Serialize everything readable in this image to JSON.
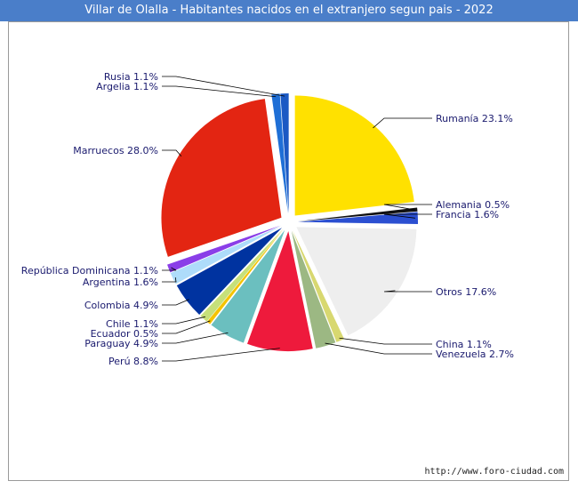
{
  "title": "Villar de Olalla - Habitantes nacidos en el extranjero segun pais - 2022",
  "url": "http://www.foro-ciudad.com",
  "chart_data": {
    "type": "pie",
    "title": "Villar de Olalla - Habitantes nacidos en el extranjero segun pais - 2022",
    "slices": [
      {
        "label": "Rumanía 23.1%",
        "name": "Rumanía",
        "value": 23.1,
        "color": "#ffe100"
      },
      {
        "label": "Alemania 0.5%",
        "name": "Alemania",
        "value": 0.5,
        "color": "#111111"
      },
      {
        "label": "Francia 1.6%",
        "name": "Francia",
        "value": 1.6,
        "color": "#2b4fd1"
      },
      {
        "label": "Otros 17.6%",
        "name": "Otros",
        "value": 17.6,
        "color": "#eeeeee"
      },
      {
        "label": "China 1.1%",
        "name": "China",
        "value": 1.1,
        "color": "#d8d870"
      },
      {
        "label": "Venezuela 2.7%",
        "name": "Venezuela",
        "value": 2.7,
        "color": "#9cb883"
      },
      {
        "label": "Perú 8.8%",
        "name": "Perú",
        "value": 8.8,
        "color": "#ee1a3c"
      },
      {
        "label": "Paraguay 4.9%",
        "name": "Paraguay",
        "value": 4.9,
        "color": "#6bbfbf"
      },
      {
        "label": "Ecuador 0.5%",
        "name": "Ecuador",
        "value": 0.5,
        "color": "#f4c300"
      },
      {
        "label": "Chile 1.1%",
        "name": "Chile",
        "value": 1.1,
        "color": "#c6e07a"
      },
      {
        "label": "Colombia 4.9%",
        "name": "Colombia",
        "value": 4.9,
        "color": "#0033a0"
      },
      {
        "label": "Argentina 1.6%",
        "name": "Argentina",
        "value": 1.6,
        "color": "#aedcfa"
      },
      {
        "label": "República Dominicana 1.1%",
        "name": "República Dominicana",
        "value": 1.1,
        "color": "#8a3ee8"
      },
      {
        "label": "Marruecos 28.0%",
        "name": "Marruecos",
        "value": 28.0,
        "color": "#e32512"
      },
      {
        "label": "Argelia 1.1%",
        "name": "Argelia",
        "value": 1.1,
        "color": "#1f6fd6"
      },
      {
        "label": "Rusia 1.1%",
        "name": "Rusia",
        "value": 1.1,
        "color": "#1b59c4"
      }
    ]
  }
}
